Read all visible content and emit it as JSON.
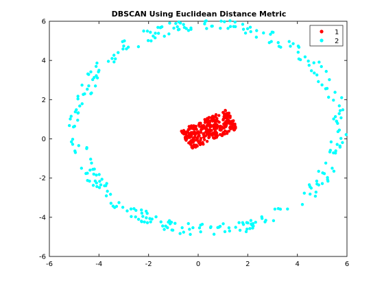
{
  "chart_data": {
    "type": "scatter",
    "title": "DBSCAN Using Euclidean Distance Metric",
    "xlabel": "",
    "ylabel": "",
    "xlim": [
      -6,
      6
    ],
    "ylim": [
      -6,
      6
    ],
    "xticks": [
      "-6",
      "-4",
      "-2",
      "0",
      "2",
      "4",
      "6"
    ],
    "yticks": [
      "-6",
      "-4",
      "-2",
      "0",
      "2",
      "4",
      "6"
    ],
    "grid": false,
    "legend_position": "top-right",
    "series": [
      {
        "name": "1",
        "color": "#ff0000",
        "marker": "filled-circle",
        "shape": "inner-cluster",
        "center": [
          0.45,
          0.5
        ],
        "extent": [
          1.5,
          0.55
        ],
        "rotation_deg": 30,
        "count": 300
      },
      {
        "name": "2",
        "color": "#00ffff",
        "marker": "filled-circle",
        "shape": "ring",
        "center": [
          0.4,
          0.6
        ],
        "radii": [
          5.3,
          5.25
        ],
        "jitter": 0.3,
        "count": 300
      }
    ]
  }
}
